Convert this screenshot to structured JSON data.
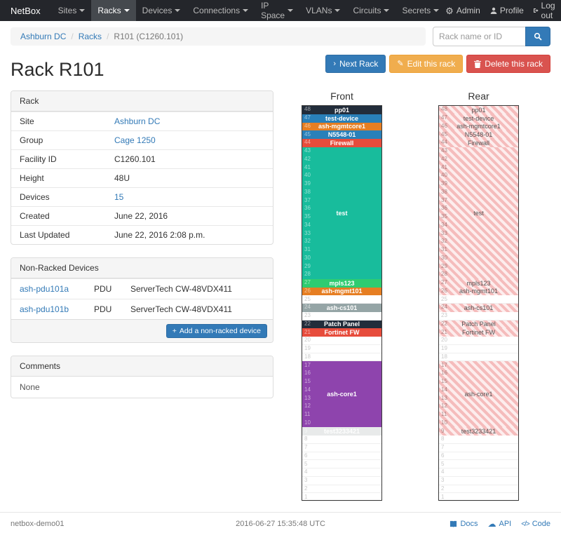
{
  "navbar": {
    "brand": "NetBox",
    "items": [
      {
        "label": "Sites"
      },
      {
        "label": "Racks"
      },
      {
        "label": "Devices"
      },
      {
        "label": "Connections"
      },
      {
        "label": "IP Space"
      },
      {
        "label": "VLANs"
      },
      {
        "label": "Circuits"
      },
      {
        "label": "Secrets"
      }
    ],
    "admin": "Admin",
    "profile": "Profile",
    "logout": "Log out"
  },
  "breadcrumb": {
    "site": "Ashburn DC",
    "section": "Racks",
    "current": "R101 (C1260.101)"
  },
  "search": {
    "placeholder": "Rack name or ID"
  },
  "actions": {
    "next_rack": "Next Rack",
    "edit": "Edit this rack",
    "delete": "Delete this rack"
  },
  "page_title": "Rack R101",
  "rack_panel": {
    "title": "Rack",
    "rows": [
      {
        "label": "Site",
        "value": "Ashburn DC"
      },
      {
        "label": "Group",
        "value": "Cage 1250"
      },
      {
        "label": "Facility ID",
        "value": "C1260.101"
      },
      {
        "label": "Height",
        "value": "48U"
      },
      {
        "label": "Devices",
        "value": "15"
      },
      {
        "label": "Created",
        "value": "June 22, 2016"
      },
      {
        "label": "Last Updated",
        "value": "June 22, 2016 2:08 p.m."
      }
    ]
  },
  "non_racked": {
    "title": "Non-Racked Devices",
    "devices": [
      {
        "name": "ash-pdu101a",
        "role": "PDU",
        "model": "ServerTech CW-48VDX411"
      },
      {
        "name": "ash-pdu101b",
        "role": "PDU",
        "model": "ServerTech CW-48VDX411"
      }
    ],
    "add_button": "Add a non-racked device"
  },
  "comments": {
    "title": "Comments",
    "body": "None"
  },
  "elevation": {
    "front_title": "Front",
    "rear_title": "Rear",
    "units": 48,
    "devices": [
      {
        "name": "pp01",
        "top_u": 48,
        "u_height": 1,
        "color": "#222d3b"
      },
      {
        "name": "test-device",
        "top_u": 47,
        "u_height": 1,
        "color": "#2980b9"
      },
      {
        "name": "ash-mgmtcore1",
        "top_u": 46,
        "u_height": 1,
        "color": "#e67e22"
      },
      {
        "name": "N5548-01",
        "top_u": 45,
        "u_height": 1,
        "color": "#2980b9"
      },
      {
        "name": "Firewall",
        "top_u": 44,
        "u_height": 1,
        "color": "#e74c3c"
      },
      {
        "name": "test",
        "top_u": 43,
        "u_height": 16,
        "color": "#18bc9c"
      },
      {
        "name": "mpls123",
        "top_u": 27,
        "u_height": 1,
        "color": "#2ecc71"
      },
      {
        "name": "ash-mgmt101",
        "top_u": 26,
        "u_height": 1,
        "color": "#e67e22"
      },
      {
        "name": "ash-cs101",
        "top_u": 24,
        "u_height": 1,
        "color": "#95a5a6"
      },
      {
        "name": "Patch Panel",
        "top_u": 22,
        "u_height": 1,
        "color": "#222d3b"
      },
      {
        "name": "Fortinet FW",
        "top_u": 21,
        "u_height": 1,
        "color": "#e74c3c"
      },
      {
        "name": "ash-core1",
        "top_u": 17,
        "u_height": 8,
        "color": "#8e44ad"
      },
      {
        "name": "test3233421",
        "top_u": 9,
        "u_height": 1,
        "color": "#e8eaea",
        "light": true
      }
    ]
  },
  "footer": {
    "hostname": "netbox-demo01",
    "timestamp": "2016-06-27 15:35:48 UTC",
    "docs": "Docs",
    "api": "API",
    "code": "Code"
  }
}
